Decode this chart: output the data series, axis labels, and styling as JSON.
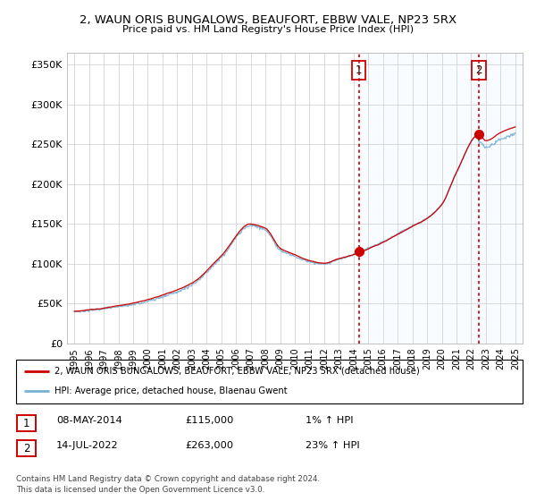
{
  "title1": "2, WAUN ORIS BUNGALOWS, BEAUFORT, EBBW VALE, NP23 5RX",
  "title2": "Price paid vs. HM Land Registry's House Price Index (HPI)",
  "ylabel_ticks": [
    "£0",
    "£50K",
    "£100K",
    "£150K",
    "£200K",
    "£250K",
    "£300K",
    "£350K"
  ],
  "ytick_values": [
    0,
    50000,
    100000,
    150000,
    200000,
    250000,
    300000,
    350000
  ],
  "ylim": [
    0,
    365000
  ],
  "xlim_start": 1994.5,
  "xlim_end": 2025.5,
  "sale1_date": 2014.35,
  "sale1_price": 115000,
  "sale1_label": "1",
  "sale2_date": 2022.54,
  "sale2_price": 263000,
  "sale2_label": "2",
  "hpi_line_color": "#7ab0d4",
  "price_line_color": "#cc0000",
  "vline_color": "#cc0000",
  "shade_color": "#ddeeff",
  "background_color": "#ffffff",
  "grid_color": "#cccccc",
  "legend_label1": "2, WAUN ORIS BUNGALOWS, BEAUFORT, EBBW VALE, NP23 5RX (detached house)",
  "legend_label2": "HPI: Average price, detached house, Blaenau Gwent",
  "table_row1": [
    "1",
    "08-MAY-2014",
    "£115,000",
    "1% ↑ HPI"
  ],
  "table_row2": [
    "2",
    "14-JUL-2022",
    "£263,000",
    "23% ↑ HPI"
  ],
  "footer": "Contains HM Land Registry data © Crown copyright and database right 2024.\nThis data is licensed under the Open Government Licence v3.0.",
  "xtick_years": [
    1995,
    1996,
    1997,
    1998,
    1999,
    2000,
    2001,
    2002,
    2003,
    2004,
    2005,
    2006,
    2007,
    2008,
    2009,
    2010,
    2011,
    2012,
    2013,
    2014,
    2015,
    2016,
    2017,
    2018,
    2019,
    2020,
    2021,
    2022,
    2023,
    2024,
    2025
  ]
}
